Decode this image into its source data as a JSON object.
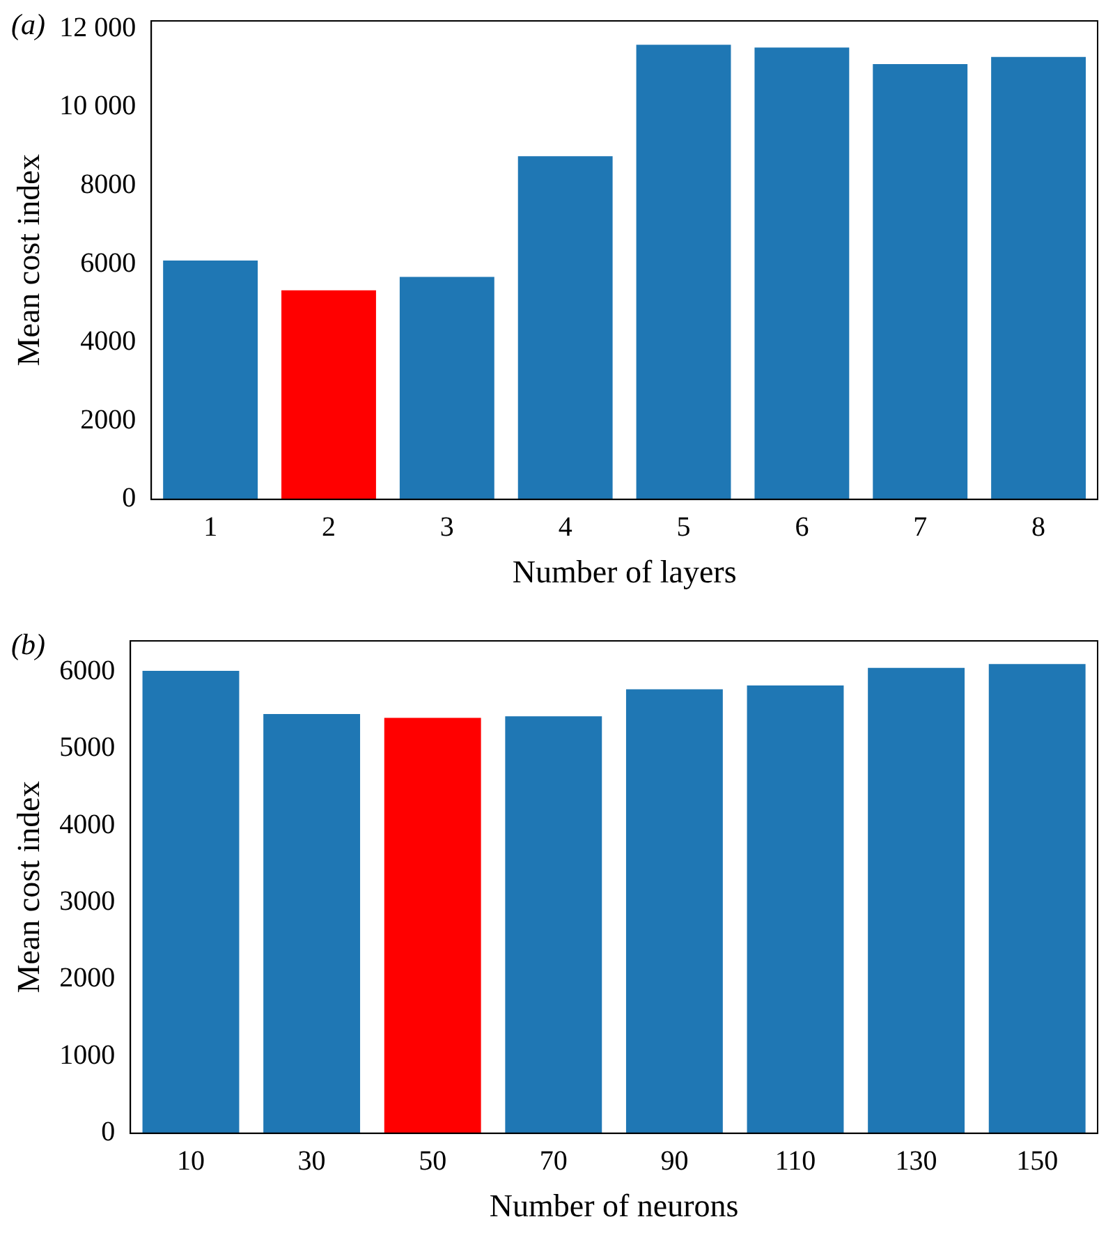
{
  "chart_data": [
    {
      "type": "bar",
      "title": "(a)",
      "xlabel": "Number of layers",
      "ylabel": "Mean cost index",
      "categories": [
        "1",
        "2",
        "3",
        "4",
        "5",
        "6",
        "7",
        "8"
      ],
      "values": [
        6090,
        5330,
        5670,
        8750,
        11590,
        11520,
        11100,
        11280
      ],
      "colors": [
        "#1f77b4",
        "#ff0000",
        "#1f77b4",
        "#1f77b4",
        "#1f77b4",
        "#1f77b4",
        "#1f77b4",
        "#1f77b4"
      ],
      "ylim": [
        0,
        12200
      ],
      "yticks": [
        0,
        2000,
        4000,
        6000,
        8000,
        {
          "value": 10000,
          "label": "10 000"
        },
        {
          "value": 12000,
          "label": "12 000"
        }
      ],
      "grid": false,
      "legend": false
    },
    {
      "type": "bar",
      "title": "(b)",
      "xlabel": "Number of neurons",
      "ylabel": "Mean cost index",
      "categories": [
        "10",
        "30",
        "50",
        "70",
        "90",
        "110",
        "130",
        "150"
      ],
      "values": [
        6010,
        5450,
        5400,
        5420,
        5770,
        5820,
        6050,
        6100
      ],
      "colors": [
        "#1f77b4",
        "#1f77b4",
        "#ff0000",
        "#1f77b4",
        "#1f77b4",
        "#1f77b4",
        "#1f77b4",
        "#1f77b4"
      ],
      "ylim": [
        0,
        6400
      ],
      "yticks": [
        0,
        1000,
        2000,
        3000,
        4000,
        5000,
        6000
      ],
      "grid": false,
      "legend": false
    }
  ]
}
